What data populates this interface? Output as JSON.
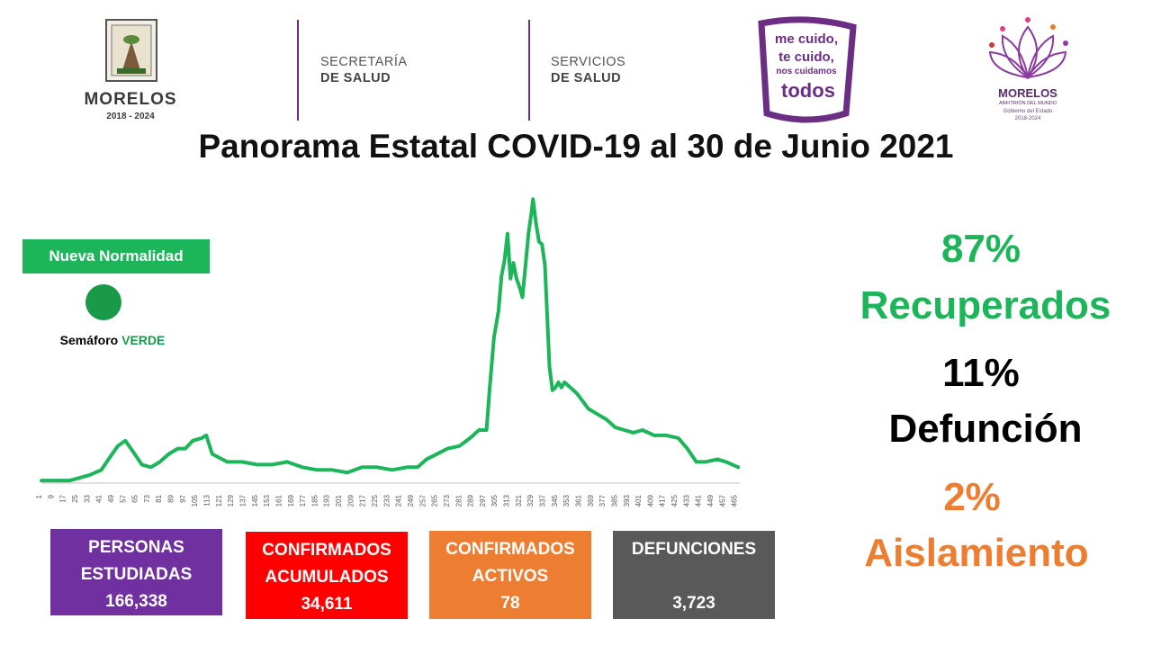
{
  "header": {
    "state_logo": {
      "name": "MORELOS",
      "years": "2018 - 2024"
    },
    "departments": [
      {
        "line1": "SECRETARÍA",
        "line2": "DE SALUD"
      },
      {
        "line1": "SERVICIOS",
        "line2": "DE SALUD"
      }
    ],
    "campaign": {
      "line1": "me cuido,",
      "line2": "te cuido,",
      "line3": "nos cuidamos",
      "line4": "todos"
    },
    "gov_logo": {
      "name": "MORELOS",
      "tagline": "ANFITRIÓN DEL MUNDO",
      "sub": "Gobierno del Estado",
      "years": "2018-2024"
    }
  },
  "title": "Panorama Estatal COVID-19 al 30 de Junio 2021",
  "status": {
    "badge": "Nueva Normalidad",
    "semaforo_label": "Semáforo",
    "semaforo_value": "VERDE",
    "semaforo_color": "#1a9a48"
  },
  "stats": {
    "recuperados": {
      "pct": "87%",
      "label": "Recuperados",
      "color": "#1db55a"
    },
    "defuncion": {
      "pct": "11%",
      "label": "Defunción",
      "color": "#000000"
    },
    "aislamiento": {
      "pct": "2%",
      "label": "Aislamiento",
      "color": "#ed7d31"
    }
  },
  "boxes": {
    "personas": {
      "line1": "PERSONAS",
      "line2": "ESTUDIADAS",
      "value": "166,338",
      "color": "#7030a0"
    },
    "confirmados": {
      "line1": "CONFIRMADOS",
      "line2": "ACUMULADOS",
      "value": "34,611",
      "color": "#ff0000"
    },
    "activos": {
      "line1": "CONFIRMADOS",
      "line2": "ACTIVOS",
      "value": "78",
      "color": "#ed7d31"
    },
    "defunciones": {
      "line1": "DEFUNCIONES",
      "value": "3,723",
      "color": "#595959"
    }
  },
  "chart_data": {
    "type": "line",
    "line_color": "#1db55a",
    "x_ticks": [
      1,
      9,
      17,
      25,
      33,
      41,
      49,
      57,
      65,
      73,
      81,
      89,
      97,
      105,
      113,
      121,
      129,
      137,
      145,
      153,
      161,
      169,
      177,
      185,
      193,
      201,
      209,
      217,
      225,
      233,
      241,
      249,
      257,
      265,
      273,
      281,
      289,
      297,
      305,
      313,
      321,
      329,
      337,
      345,
      353,
      361,
      369,
      377,
      385,
      393,
      401,
      409,
      417,
      425,
      433,
      441,
      449,
      457,
      465
    ],
    "x_range": [
      1,
      467
    ],
    "y_range": [
      0,
      100
    ],
    "grid": false,
    "series": [
      {
        "points": [
          [
            1,
            1
          ],
          [
            20,
            1
          ],
          [
            33,
            3
          ],
          [
            41,
            5
          ],
          [
            47,
            10
          ],
          [
            52,
            14
          ],
          [
            57,
            16
          ],
          [
            62,
            12
          ],
          [
            68,
            7
          ],
          [
            74,
            6
          ],
          [
            80,
            8
          ],
          [
            86,
            11
          ],
          [
            92,
            13
          ],
          [
            97,
            13
          ],
          [
            102,
            16
          ],
          [
            108,
            17
          ],
          [
            111,
            18
          ],
          [
            115,
            11
          ],
          [
            125,
            8
          ],
          [
            135,
            8
          ],
          [
            145,
            7
          ],
          [
            155,
            7
          ],
          [
            165,
            8
          ],
          [
            175,
            6
          ],
          [
            185,
            5
          ],
          [
            195,
            5
          ],
          [
            205,
            4
          ],
          [
            215,
            6
          ],
          [
            225,
            6
          ],
          [
            235,
            5
          ],
          [
            245,
            6
          ],
          [
            252,
            6
          ],
          [
            258,
            9
          ],
          [
            265,
            11
          ],
          [
            272,
            13
          ],
          [
            280,
            14
          ],
          [
            287,
            17
          ],
          [
            293,
            20
          ],
          [
            298,
            20
          ],
          [
            300,
            35
          ],
          [
            303,
            55
          ],
          [
            306,
            65
          ],
          [
            308,
            78
          ],
          [
            310,
            84
          ],
          [
            312,
            94
          ],
          [
            314,
            77
          ],
          [
            316,
            83
          ],
          [
            318,
            77
          ],
          [
            320,
            74
          ],
          [
            322,
            70
          ],
          [
            324,
            82
          ],
          [
            326,
            94
          ],
          [
            328,
            102
          ],
          [
            329,
            107
          ],
          [
            331,
            98
          ],
          [
            333,
            91
          ],
          [
            335,
            90
          ],
          [
            337,
            82
          ],
          [
            340,
            44
          ],
          [
            342,
            35
          ],
          [
            344,
            36
          ],
          [
            346,
            38
          ],
          [
            348,
            36
          ],
          [
            350,
            38
          ],
          [
            354,
            36
          ],
          [
            358,
            34
          ],
          [
            362,
            31
          ],
          [
            366,
            28
          ],
          [
            372,
            26
          ],
          [
            378,
            24
          ],
          [
            384,
            21
          ],
          [
            390,
            20
          ],
          [
            396,
            19
          ],
          [
            402,
            20
          ],
          [
            410,
            18
          ],
          [
            418,
            18
          ],
          [
            426,
            17
          ],
          [
            432,
            13
          ],
          [
            438,
            8
          ],
          [
            444,
            8
          ],
          [
            452,
            9
          ],
          [
            458,
            8
          ],
          [
            462,
            7
          ],
          [
            466,
            6
          ]
        ]
      }
    ]
  }
}
